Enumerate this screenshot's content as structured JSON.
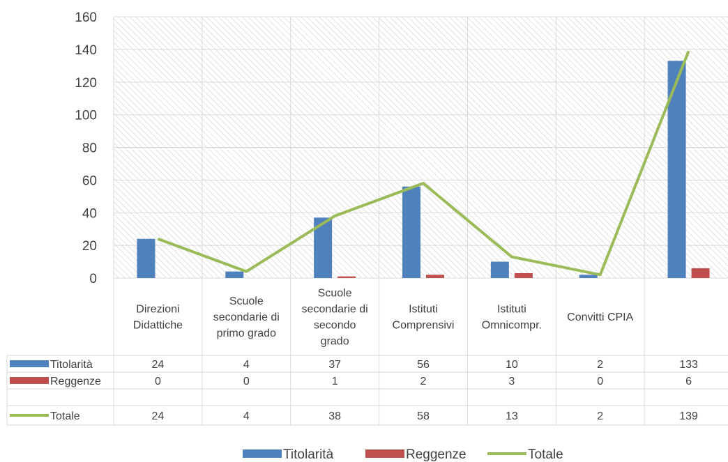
{
  "chart_data": {
    "type": "bar",
    "categories": [
      [
        "Direzioni",
        "Didattiche"
      ],
      [
        "Scuole",
        "secondarie di",
        "primo grado"
      ],
      [
        "Scuole",
        "secondarie di",
        "secondo",
        "grado"
      ],
      [
        "Istituti",
        "Comprensivi"
      ],
      [
        "Istituti",
        "Omnicompr."
      ],
      [
        "Convitti CPIA"
      ],
      []
    ],
    "series": [
      {
        "name": "Titolarità",
        "type": "bar",
        "color": "#4f81bd",
        "values": [
          24,
          4,
          37,
          56,
          10,
          2,
          133
        ]
      },
      {
        "name": "Reggenze",
        "type": "bar",
        "color": "#c0504d",
        "values": [
          0,
          0,
          1,
          2,
          3,
          0,
          6
        ]
      },
      {
        "name": "Totale",
        "type": "line",
        "color": "#9bbb59",
        "values": [
          24,
          4,
          38,
          58,
          13,
          2,
          139
        ]
      }
    ],
    "ylim": [
      0,
      160
    ],
    "yticks": [
      0,
      20,
      40,
      60,
      80,
      100,
      120,
      140,
      160
    ],
    "grid": true,
    "data_table": true,
    "legend": "bottom"
  }
}
